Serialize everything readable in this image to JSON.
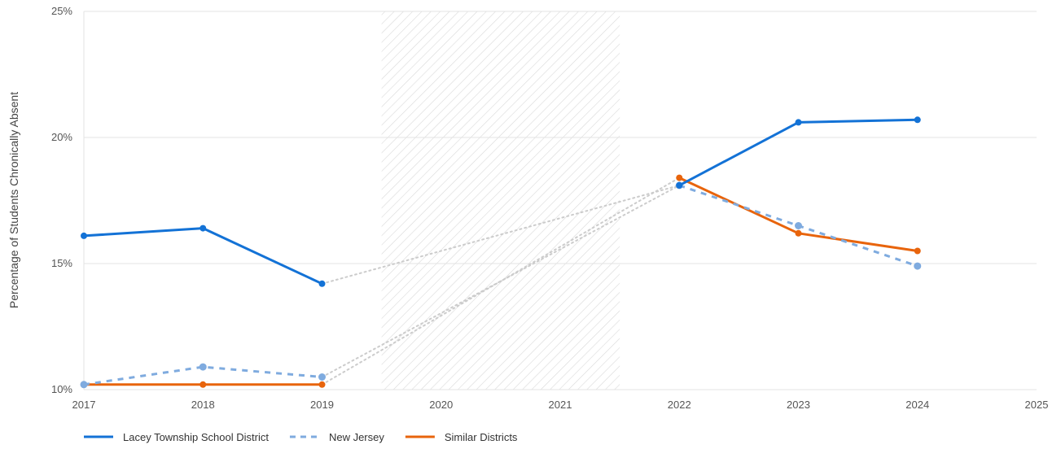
{
  "chart_data": {
    "type": "line",
    "ylabel": "Percentage of Students Chronically Absent",
    "xlim": [
      2017,
      2025
    ],
    "ylim": [
      10,
      25
    ],
    "x_ticks": [
      "2017",
      "2018",
      "2019",
      "2020",
      "2021",
      "2022",
      "2023",
      "2024",
      "2025"
    ],
    "y_ticks": [
      "10%",
      "15%",
      "20%",
      "25%"
    ],
    "grid": true,
    "legend_position": "bottom-left",
    "shaded_gap": [
      2019.5,
      2021.5
    ],
    "gap_connector_color": "#cccccc",
    "series": [
      {
        "name": "Lacey Township School District",
        "color": "#1372d6",
        "style": "solid",
        "points": [
          [
            2017,
            16.1
          ],
          [
            2018,
            16.4
          ],
          [
            2019,
            14.2
          ],
          [
            2022,
            18.1
          ],
          [
            2023,
            20.6
          ],
          [
            2024,
            20.7
          ]
        ]
      },
      {
        "name": "New Jersey",
        "color": "#7fabdf",
        "style": "dashed",
        "points": [
          [
            2017,
            10.2
          ],
          [
            2018,
            10.9
          ],
          [
            2019,
            10.5
          ],
          [
            2022,
            18.1
          ],
          [
            2023,
            16.5
          ],
          [
            2024,
            14.9
          ]
        ]
      },
      {
        "name": "Similar Districts",
        "color": "#e8640c",
        "style": "solid",
        "points": [
          [
            2017,
            10.2
          ],
          [
            2018,
            10.2
          ],
          [
            2019,
            10.2
          ],
          [
            2022,
            18.4
          ],
          [
            2023,
            16.2
          ],
          [
            2024,
            15.5
          ]
        ]
      }
    ]
  }
}
